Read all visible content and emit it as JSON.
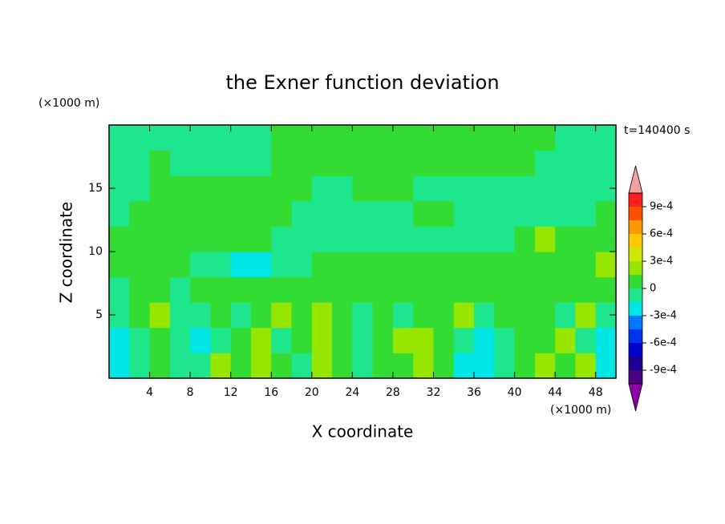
{
  "chart_data": {
    "type": "contour",
    "title": "the Exner function deviation",
    "x_label": "X coordinate",
    "y_label": "Z coordinate",
    "x_unit": "(×1000 m)",
    "y_unit": "(×1000 m)",
    "annotation": "t=140400 s",
    "xlim": [
      0,
      50
    ],
    "ylim": [
      0,
      20
    ],
    "xticks": [
      4,
      8,
      12,
      16,
      20,
      24,
      28,
      32,
      36,
      40,
      44,
      48
    ],
    "yticks": [
      5,
      10,
      15
    ],
    "x": [
      1,
      3,
      5,
      7,
      9,
      11,
      13,
      15,
      17,
      19,
      21,
      23,
      25,
      27,
      29,
      31,
      33,
      35,
      37,
      39,
      41,
      43,
      45,
      47,
      49
    ],
    "y": [
      1,
      3,
      5,
      7,
      9,
      11,
      13,
      15,
      17,
      19
    ],
    "z": [
      [
        -0.0002,
        -5e-05,
        8e-05,
        -5e-05,
        -5e-05,
        0.0002,
        8e-05,
        0.0002,
        8e-05,
        -5e-05,
        0.0002,
        8e-05,
        -5e-05,
        8e-05,
        8e-05,
        0.0002,
        8e-05,
        -0.0002,
        -0.0002,
        -5e-05,
        8e-05,
        0.0002,
        8e-05,
        0.0002,
        -0.0002
      ],
      [
        -0.0002,
        -5e-05,
        8e-05,
        -5e-05,
        -0.0002,
        -5e-05,
        8e-05,
        0.0002,
        -5e-05,
        8e-05,
        0.0002,
        8e-05,
        -5e-05,
        8e-05,
        0.0002,
        0.0002,
        8e-05,
        -5e-05,
        -0.0002,
        -5e-05,
        8e-05,
        8e-05,
        0.0002,
        -5e-05,
        -0.0002
      ],
      [
        -5e-05,
        8e-05,
        0.0002,
        -5e-05,
        -5e-05,
        8e-05,
        -5e-05,
        8e-05,
        0.0002,
        8e-05,
        0.0002,
        8e-05,
        -5e-05,
        8e-05,
        -5e-05,
        8e-05,
        8e-05,
        0.0002,
        -5e-05,
        8e-05,
        8e-05,
        8e-05,
        -5e-05,
        0.0002,
        -5e-05
      ],
      [
        -5e-05,
        8e-05,
        8e-05,
        -5e-05,
        8e-05,
        8e-05,
        8e-05,
        8e-05,
        8e-05,
        8e-05,
        8e-05,
        8e-05,
        8e-05,
        8e-05,
        8e-05,
        8e-05,
        8e-05,
        8e-05,
        8e-05,
        8e-05,
        8e-05,
        8e-05,
        8e-05,
        8e-05,
        8e-05
      ],
      [
        8e-05,
        8e-05,
        8e-05,
        8e-05,
        -5e-05,
        -5e-05,
        -0.0002,
        -0.0002,
        -5e-05,
        -5e-05,
        8e-05,
        8e-05,
        8e-05,
        8e-05,
        8e-05,
        8e-05,
        8e-05,
        8e-05,
        8e-05,
        8e-05,
        8e-05,
        8e-05,
        8e-05,
        8e-05,
        0.0002
      ],
      [
        8e-05,
        8e-05,
        8e-05,
        8e-05,
        8e-05,
        8e-05,
        8e-05,
        8e-05,
        -5e-05,
        -5e-05,
        -5e-05,
        -5e-05,
        -5e-05,
        -5e-05,
        -5e-05,
        -5e-05,
        -5e-05,
        -5e-05,
        -5e-05,
        -5e-05,
        8e-05,
        0.0002,
        8e-05,
        8e-05,
        8e-05
      ],
      [
        -5e-05,
        8e-05,
        8e-05,
        8e-05,
        8e-05,
        8e-05,
        8e-05,
        8e-05,
        8e-05,
        -5e-05,
        -5e-05,
        -5e-05,
        -5e-05,
        -5e-05,
        -5e-05,
        8e-05,
        8e-05,
        -5e-05,
        -5e-05,
        -5e-05,
        -5e-05,
        -5e-05,
        -5e-05,
        -5e-05,
        8e-05
      ],
      [
        -5e-05,
        -5e-05,
        8e-05,
        8e-05,
        8e-05,
        8e-05,
        8e-05,
        8e-05,
        8e-05,
        8e-05,
        -5e-05,
        -5e-05,
        8e-05,
        8e-05,
        8e-05,
        -5e-05,
        -5e-05,
        -5e-05,
        -5e-05,
        -5e-05,
        -5e-05,
        -5e-05,
        -5e-05,
        -5e-05,
        -5e-05
      ],
      [
        -5e-05,
        -5e-05,
        8e-05,
        -5e-05,
        -5e-05,
        -5e-05,
        -5e-05,
        -5e-05,
        8e-05,
        8e-05,
        8e-05,
        8e-05,
        8e-05,
        8e-05,
        8e-05,
        8e-05,
        8e-05,
        8e-05,
        8e-05,
        8e-05,
        8e-05,
        -5e-05,
        -5e-05,
        -5e-05,
        -5e-05
      ],
      [
        -5e-05,
        -5e-05,
        -5e-05,
        -5e-05,
        -5e-05,
        -5e-05,
        -5e-05,
        -5e-05,
        8e-05,
        8e-05,
        8e-05,
        8e-05,
        8e-05,
        8e-05,
        8e-05,
        8e-05,
        8e-05,
        8e-05,
        8e-05,
        8e-05,
        8e-05,
        8e-05,
        -5e-05,
        -5e-05,
        -5e-05
      ]
    ],
    "levels": [
      -0.00105,
      -0.0009,
      -0.00075,
      -0.0006,
      -0.00045,
      -0.0003,
      -0.00015,
      0,
      0.00015,
      0.0003,
      0.00045,
      0.0006,
      0.00075,
      0.0009,
      0.00105
    ],
    "colors": [
      "#4b0082",
      "#1e0096",
      "#0000c8",
      "#0032f0",
      "#0078ff",
      "#00e6e6",
      "#1ee68c",
      "#32dc32",
      "#96e600",
      "#d2e600",
      "#ffc800",
      "#ff9600",
      "#ff5000",
      "#ff1e1e"
    ],
    "under_color": "#8c00aa",
    "over_color": "#f4a0a0",
    "cticks": [
      {
        "value": 0.0009,
        "label": "9e-4"
      },
      {
        "value": 0.0006,
        "label": "6e-4"
      },
      {
        "value": 0.0003,
        "label": "3e-4"
      },
      0,
      {
        "value": -0.0003,
        "label": "-3e-4"
      },
      {
        "value": -0.0006,
        "label": "-6e-4"
      },
      {
        "value": -0.0009,
        "label": "-9e-4"
      }
    ]
  }
}
